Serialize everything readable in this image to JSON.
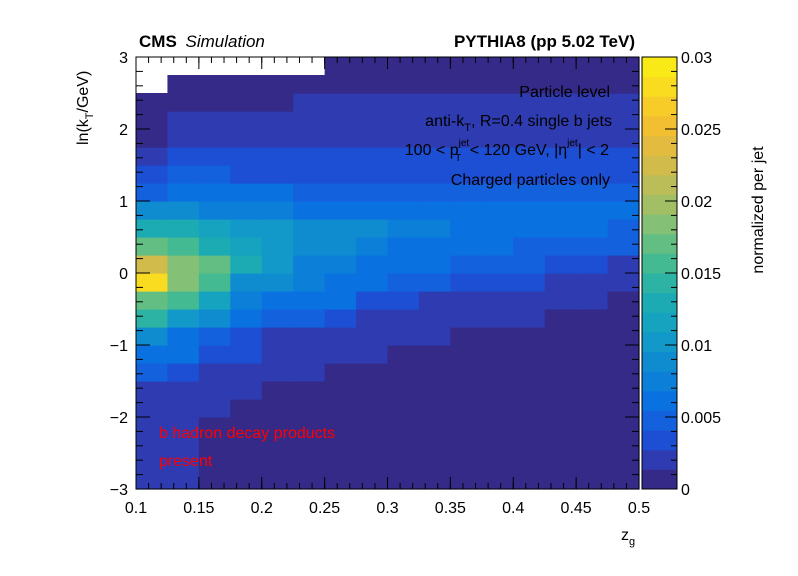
{
  "chart_data": {
    "type": "heatmap",
    "header_left_bold": "CMS",
    "header_left_italic": "Simulation",
    "header_right": "PYTHIA8 (pp 5.02 TeV)",
    "xlabel_main": "z",
    "xlabel_sub": "g",
    "ylabel_pre": "ln(k",
    "ylabel_sub": "T",
    "ylabel_post": "/GeV)",
    "zlabel": "normalized per jet",
    "xlim": [
      0.1,
      0.5
    ],
    "ylim": [
      -3,
      3
    ],
    "zlim": [
      0,
      0.03
    ],
    "x_ticks": [
      "0.1",
      "0.15",
      "0.2",
      "0.25",
      "0.3",
      "0.35",
      "0.4",
      "0.45",
      "0.5"
    ],
    "y_ticks": [
      "−3",
      "−2",
      "−1",
      "0",
      "1",
      "2",
      "3"
    ],
    "z_ticks": [
      "0",
      "0.005",
      "0.01",
      "0.015",
      "0.02",
      "0.025",
      "0.03"
    ],
    "legend_lines": {
      "line1": "Particle level",
      "line2_pre": "anti-k",
      "line2_sub": "T",
      "line2_post": ", R=0.4 single b jets",
      "line3_a": "100 < p",
      "line3_sup1": "jet",
      "line3_sub1": "T",
      "line3_b": " < 120 GeV, |η",
      "line3_sup2": "jet",
      "line3_c": "| < 2",
      "line4": "Charged particles only"
    },
    "annotation_line1": "b hadron decay products",
    "annotation_line2": "present",
    "colors": {
      "annotation": "#ff0000",
      "palette": [
        "#352a87",
        "#2f3bb0",
        "#1c4fd4",
        "#1461de",
        "#0a71e0",
        "#0c7fd8",
        "#0f8cd0",
        "#1299c9",
        "#15a3bf",
        "#1cabb2",
        "#2cb3a3",
        "#44ba93",
        "#63be84",
        "#84c075",
        "#a2bf66",
        "#bbbd58",
        "#d0bb4b",
        "#e2bb3f",
        "#f2bf33",
        "#f8cc28",
        "#f9db1f",
        "#f9e916"
      ]
    },
    "x_bin_edges": [
      0.1,
      0.125,
      0.15,
      0.175,
      0.2,
      0.225,
      0.25,
      0.275,
      0.3,
      0.325,
      0.35,
      0.375,
      0.4,
      0.425,
      0.45,
      0.475,
      0.5
    ],
    "y_bin_edges": [
      -3,
      -2.75,
      -2.5,
      -2.25,
      -2,
      -1.75,
      -1.5,
      -1.25,
      -1,
      -0.75,
      -0.5,
      -0.25,
      0,
      0.25,
      0.5,
      0.75,
      1,
      1.25,
      1.5,
      1.75,
      2,
      2.25,
      2.5,
      2.75,
      3
    ],
    "values_note_rows_from_ymin": "values[row][col]: row 0 = y in [-3,-2.75]",
    "values": [
      [
        0.0015,
        0.0014,
        0.0013,
        0.0012,
        0.0012,
        0.0011,
        0.0011,
        0.0011,
        0.001,
        0.001,
        0.001,
        0.001,
        0.001,
        0.001,
        0.001,
        0.001
      ],
      [
        0.0015,
        0.0014,
        0.0013,
        0.0012,
        0.0012,
        0.0011,
        0.0011,
        0.0011,
        0.001,
        0.001,
        0.001,
        0.001,
        0.001,
        0.001,
        0.001,
        0.001
      ],
      [
        0.0015,
        0.0014,
        0.0013,
        0.0012,
        0.0012,
        0.0011,
        0.0011,
        0.0011,
        0.001,
        0.001,
        0.001,
        0.001,
        0.001,
        0.001,
        0.001,
        0.001
      ],
      [
        0.0015,
        0.0014,
        0.0013,
        0.0012,
        0.0012,
        0.0011,
        0.0011,
        0.0011,
        0.001,
        0.001,
        0.001,
        0.001,
        0.001,
        0.001,
        0.001,
        0.001
      ],
      [
        0.0016,
        0.0015,
        0.0014,
        0.0013,
        0.0012,
        0.0012,
        0.0011,
        0.0011,
        0.001,
        0.001,
        0.001,
        0.001,
        0.001,
        0.001,
        0.001,
        0.001
      ],
      [
        0.0018,
        0.0016,
        0.0015,
        0.0014,
        0.0013,
        0.0012,
        0.0012,
        0.0011,
        0.0011,
        0.001,
        0.001,
        0.001,
        0.001,
        0.001,
        0.001,
        0.001
      ],
      [
        0.0045,
        0.004,
        0.0018,
        0.0016,
        0.0015,
        0.0014,
        0.0013,
        0.0012,
        0.0012,
        0.0011,
        0.0011,
        0.001,
        0.001,
        0.001,
        0.001,
        0.001
      ],
      [
        0.0065,
        0.0055,
        0.0035,
        0.0032,
        0.0018,
        0.0016,
        0.0015,
        0.0014,
        0.0013,
        0.0012,
        0.0012,
        0.0011,
        0.0011,
        0.001,
        0.001,
        0.001
      ],
      [
        0.0085,
        0.006,
        0.005,
        0.0038,
        0.0022,
        0.002,
        0.0018,
        0.0016,
        0.0015,
        0.0014,
        0.0013,
        0.0012,
        0.0012,
        0.0011,
        0.001,
        0.001
      ],
      [
        0.0145,
        0.01,
        0.009,
        0.006,
        0.005,
        0.0045,
        0.004,
        0.0025,
        0.0022,
        0.0018,
        0.0016,
        0.0015,
        0.0014,
        0.0013,
        0.0012,
        0.0012
      ],
      [
        0.0175,
        0.016,
        0.012,
        0.008,
        0.0068,
        0.0062,
        0.0058,
        0.0035,
        0.0032,
        0.0022,
        0.002,
        0.0018,
        0.0016,
        0.0015,
        0.0014,
        0.0013
      ],
      [
        0.0275,
        0.0185,
        0.0155,
        0.0095,
        0.0085,
        0.0072,
        0.0065,
        0.006,
        0.0045,
        0.0042,
        0.0038,
        0.0035,
        0.0032,
        0.0022,
        0.002,
        0.0018
      ],
      [
        0.0225,
        0.019,
        0.0165,
        0.0125,
        0.01,
        0.008,
        0.0072,
        0.0065,
        0.006,
        0.0055,
        0.005,
        0.0045,
        0.0042,
        0.0038,
        0.0035,
        0.0022
      ],
      [
        0.0168,
        0.0152,
        0.013,
        0.011,
        0.0098,
        0.009,
        0.0082,
        0.0075,
        0.0068,
        0.0062,
        0.0058,
        0.0055,
        0.0052,
        0.0048,
        0.0045,
        0.0042
      ],
      [
        0.0135,
        0.0125,
        0.0118,
        0.0105,
        0.0098,
        0.009,
        0.0085,
        0.0082,
        0.0078,
        0.0072,
        0.0068,
        0.0065,
        0.0062,
        0.0058,
        0.0055,
        0.0052
      ],
      [
        0.0088,
        0.0082,
        0.0078,
        0.0075,
        0.0072,
        0.0068,
        0.0065,
        0.0065,
        0.0062,
        0.0062,
        0.0062,
        0.0062,
        0.0062,
        0.0062,
        0.0062,
        0.0062
      ],
      [
        0.0052,
        0.0062,
        0.0058,
        0.0055,
        0.0055,
        0.0052,
        0.0052,
        0.0052,
        0.005,
        0.005,
        0.005,
        0.005,
        0.005,
        0.005,
        0.005,
        0.005
      ],
      [
        0.0038,
        0.0042,
        0.0042,
        0.004,
        0.004,
        0.004,
        0.004,
        0.004,
        0.0038,
        0.0038,
        0.0038,
        0.0038,
        0.0038,
        0.0038,
        0.0038,
        0.0038
      ],
      [
        0.0015,
        0.0035,
        0.0035,
        0.0035,
        0.0035,
        0.0034,
        0.0034,
        0.0034,
        0.0033,
        0.0033,
        0.0033,
        0.0033,
        0.0033,
        0.0033,
        0.0033,
        0.0033
      ],
      [
        0.0012,
        0.0015,
        0.0015,
        0.0015,
        0.0015,
        0.0022,
        0.0022,
        0.0022,
        0.0022,
        0.0022,
        0.0022,
        0.0022,
        0.0022,
        0.0022,
        0.0022,
        0.0022
      ],
      [
        0.0012,
        0.0014,
        0.0014,
        0.0014,
        0.0014,
        0.0015,
        0.0015,
        0.0015,
        0.0018,
        0.0018,
        0.0018,
        0.0018,
        0.0018,
        0.0018,
        0.0018,
        0.0018
      ],
      [
        0.0012,
        0.0013,
        0.0013,
        0.0013,
        0.0013,
        0.0014,
        0.0014,
        0.0014,
        0.0014,
        0.0014,
        0.0014,
        0.0014,
        0.0014,
        0.0014,
        0.0014,
        0.0014
      ],
      [
        null,
        0.0012,
        0.0012,
        0.0012,
        0.0012,
        0.0013,
        0.0013,
        0.0013,
        0.0013,
        0.0013,
        0.0013,
        0.0013,
        0.0013,
        0.0013,
        0.0013,
        0.0013
      ],
      [
        null,
        null,
        null,
        null,
        null,
        null,
        0.0012,
        0.0012,
        0.0012,
        0.0012,
        0.0012,
        0.0012,
        0.0012,
        0.0012,
        0.0012,
        0.0012
      ]
    ]
  }
}
